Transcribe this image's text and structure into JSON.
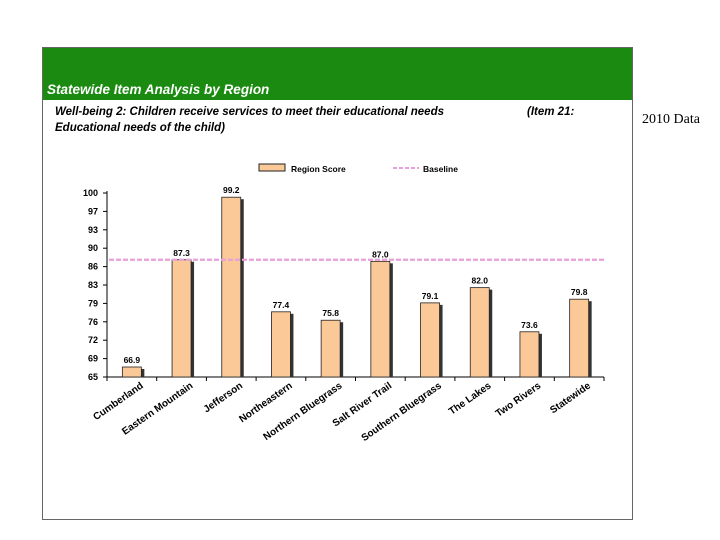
{
  "header": {
    "title": "Statewide Item Analysis by Region",
    "subtitle_line1": "Well-being 2: Children receive services to meet their educational needs",
    "subtitle_item": "(Item 21:",
    "subtitle_line2": "Educational needs of the child)"
  },
  "side_note": "2010 Data",
  "colors": {
    "header_green": "#1a8a10",
    "bar_fill": "#fbc898",
    "bar_stroke": "#222222",
    "baseline": "#e8a0d8"
  },
  "chart_data": {
    "type": "bar",
    "categories": [
      "Cumberland",
      "Eastern Mountain",
      "Jefferson",
      "Northeastern",
      "Northern Bluegrass",
      "Salt River Trail",
      "Southern Bluegrass",
      "The Lakes",
      "Two Rivers",
      "Statewide"
    ],
    "series": [
      {
        "name": "Region Score",
        "values": [
          66.9,
          87.3,
          99.2,
          77.4,
          75.8,
          87.0,
          79.1,
          82.0,
          73.6,
          79.8
        ]
      },
      {
        "name": "Baseline",
        "values": [
          87.3,
          87.3,
          87.3,
          87.3,
          87.3,
          87.3,
          87.3,
          87.3,
          87.3,
          87.3
        ],
        "style": "dashed-line"
      }
    ],
    "data_labels": [
      "66.9",
      "87.3",
      "99.2",
      "77.4",
      "75.8",
      "87.0",
      "79.1",
      "82.0",
      "73.6",
      "79.8"
    ],
    "y_ticks": [
      "65",
      "69",
      "72",
      "76",
      "79",
      "83",
      "86",
      "90",
      "93",
      "97",
      "100"
    ],
    "ylim": [
      65,
      100
    ],
    "legend": [
      "Region Score",
      "Baseline"
    ],
    "legend_position": "top",
    "grid": false
  }
}
